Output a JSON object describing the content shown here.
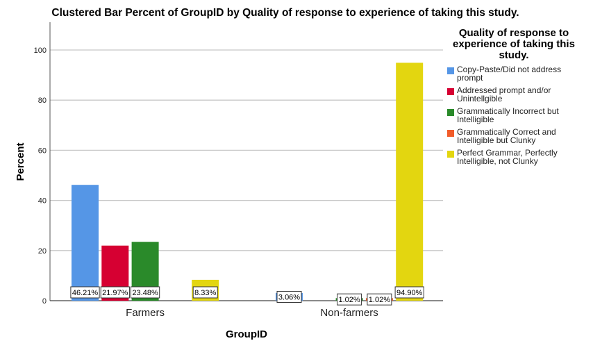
{
  "chart_data": {
    "type": "bar",
    "title": "Clustered Bar Percent of GroupID by Quality of response to experience of taking this study.",
    "xlabel": "GroupID",
    "ylabel": "Percent",
    "ylim": [
      0,
      100
    ],
    "yticks": [
      "0",
      "20",
      "40",
      "60",
      "80",
      "100"
    ],
    "grid": true,
    "legend_placement": "right",
    "legend_title": "Quality of response to experience of taking this study.",
    "categories": [
      "Farmers",
      "Non-farmers"
    ],
    "series": [
      {
        "name": "Copy-Paste/Did not address prompt",
        "color": "#5596e6",
        "values": [
          46.21,
          3.06
        ],
        "labels": [
          "46.21%",
          "3.06%"
        ]
      },
      {
        "name": "Addressed prompt and/or Unintellgible",
        "color": "#d60032",
        "values": [
          21.97,
          null
        ],
        "labels": [
          "21.97%",
          ""
        ]
      },
      {
        "name": "Grammatically Incorrect but Intelligible",
        "color": "#2a8a2a",
        "values": [
          23.48,
          1.02
        ],
        "labels": [
          "23.48%",
          "1.02%"
        ]
      },
      {
        "name": "Grammatically Correct and Intelligible but Clunky",
        "color": "#f25c2a",
        "values": [
          null,
          1.02
        ],
        "labels": [
          "",
          "1.02%"
        ]
      },
      {
        "name": "Perfect Grammar, Perfectly Intelligible, not Clunky",
        "color": "#e3d610",
        "values": [
          8.33,
          94.9
        ],
        "labels": [
          "8.33%",
          "94.90%"
        ]
      }
    ]
  }
}
